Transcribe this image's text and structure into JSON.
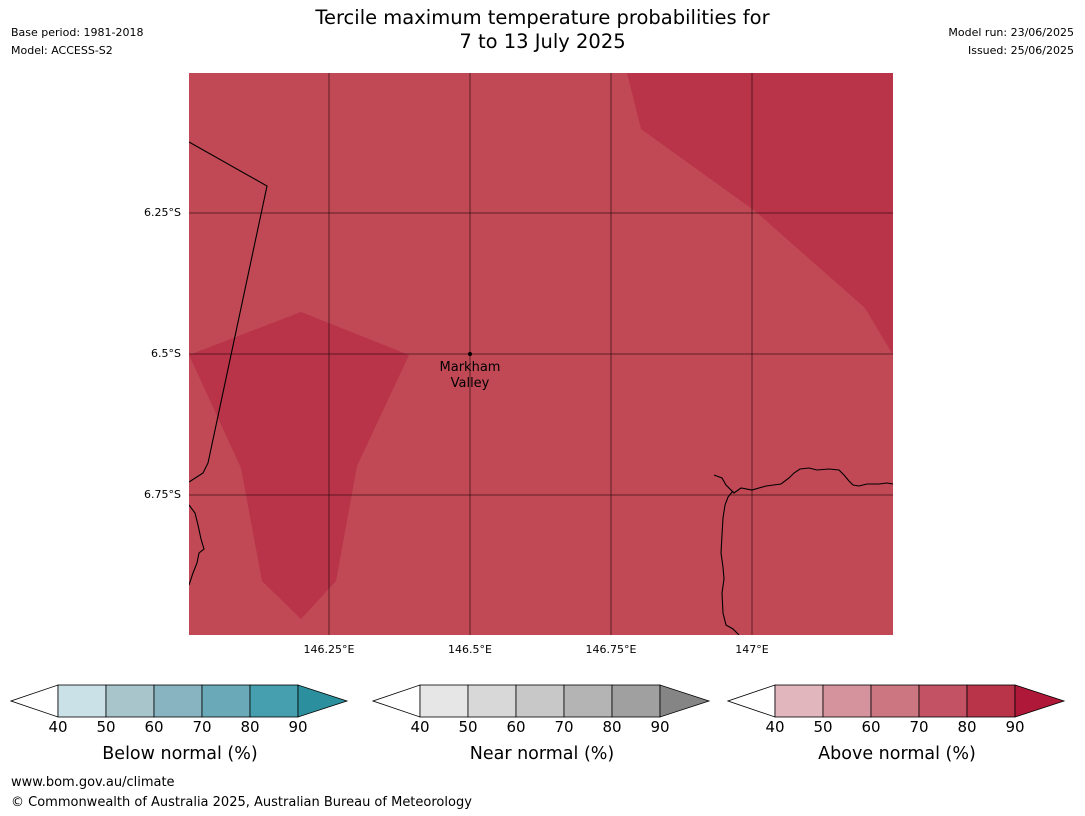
{
  "header": {
    "title_line1": "Tercile maximum temperature probabilities for",
    "title_line2": "7 to 13 July 2025",
    "base_period": "Base period: 1981-2018",
    "model": "Model: ACCESS-S2",
    "model_run": "Model run: 23/06/2025",
    "issued": "Issued: 25/06/2025"
  },
  "map": {
    "lat_labels": [
      "6.25°S",
      "6.5°S",
      "6.75°S"
    ],
    "lon_labels": [
      "146.25°E",
      "146.5°E",
      "146.75°E",
      "147°E"
    ],
    "place_line1": "Markham",
    "place_line2": "Valley",
    "fill_colors": {
      "base": "#c04955",
      "darker": "#b93349"
    }
  },
  "legends": [
    {
      "label": "Below normal (%)",
      "ticks": [
        "40",
        "50",
        "60",
        "70",
        "80",
        "90"
      ],
      "colors": [
        "#ffffff",
        "#c9e1e7",
        "#a8c5cc",
        "#88b3c0",
        "#6aa9b8",
        "#469fae",
        "#2b8f9e"
      ]
    },
    {
      "label": "Near normal (%)",
      "ticks": [
        "40",
        "50",
        "60",
        "70",
        "80",
        "90"
      ],
      "colors": [
        "#ffffff",
        "#e6e6e6",
        "#d8d8d8",
        "#c8c8c8",
        "#b4b4b4",
        "#a0a0a0",
        "#858585"
      ]
    },
    {
      "label": "Above normal (%)",
      "ticks": [
        "40",
        "50",
        "60",
        "70",
        "80",
        "90"
      ],
      "colors": [
        "#ffffff",
        "#e1b6bc",
        "#d5939d",
        "#cc7681",
        "#c25264",
        "#b93349",
        "#b0183a"
      ]
    }
  ],
  "footer": {
    "url": "www.bom.gov.au/climate",
    "copyright": "© Commonwealth of Australia 2025, Australian Bureau of Meteorology"
  }
}
